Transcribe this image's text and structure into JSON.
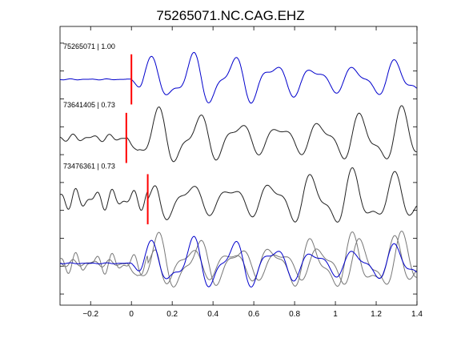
{
  "chart_data": {
    "type": "line",
    "title": "75265071.NC.CAG.EHZ",
    "xlabel": "",
    "ylabel": "",
    "xlim": [
      -0.35,
      1.4
    ],
    "x_ticks": [
      -0.2,
      0,
      0.2,
      0.4,
      0.6,
      0.8,
      1,
      1.2,
      1.4
    ],
    "x_tick_labels": [
      "−0.2",
      "0",
      "0.2",
      "0.4",
      "0.6",
      "0.8",
      "1",
      "1.2",
      "1.4"
    ],
    "y_ticks": [
      0.4,
      1.4,
      2.4,
      3.4,
      4.4,
      5.4,
      6.4,
      7.4,
      8.4,
      9.4
    ],
    "grid": false,
    "colors": {
      "master": "#0000cc",
      "other": "#222222",
      "overlay_other": "#777777",
      "pick": "#ff0000"
    },
    "traces": [
      {
        "label": "75265071 | 1.00",
        "event_id": "75265071",
        "correlation": "1.00",
        "offset": 8.1,
        "pick_time": 0.0,
        "color": "master",
        "shift": 0.0,
        "onset": 0.0,
        "pre_amp": 0.02,
        "amp": 0.9,
        "seed": 1
      },
      {
        "label": "73641405 | 0.73",
        "event_id": "73641405",
        "correlation": "0.73",
        "offset": 6.0,
        "pick_time": -0.025,
        "color": "other",
        "shift": 0.02,
        "onset": -0.02,
        "pre_amp": 0.14,
        "amp": 1.0,
        "seed": 2
      },
      {
        "label": "73476361 | 0.73",
        "event_id": "73476361",
        "correlation": "0.73",
        "offset": 3.8,
        "pick_time": 0.08,
        "color": "other",
        "shift": -0.03,
        "onset": 0.08,
        "pre_amp": 0.4,
        "amp": 1.0,
        "seed": 3
      }
    ],
    "overlay": {
      "offset": 1.5,
      "description_traces": [
        "73641405",
        "73476361",
        "75265071"
      ]
    }
  }
}
